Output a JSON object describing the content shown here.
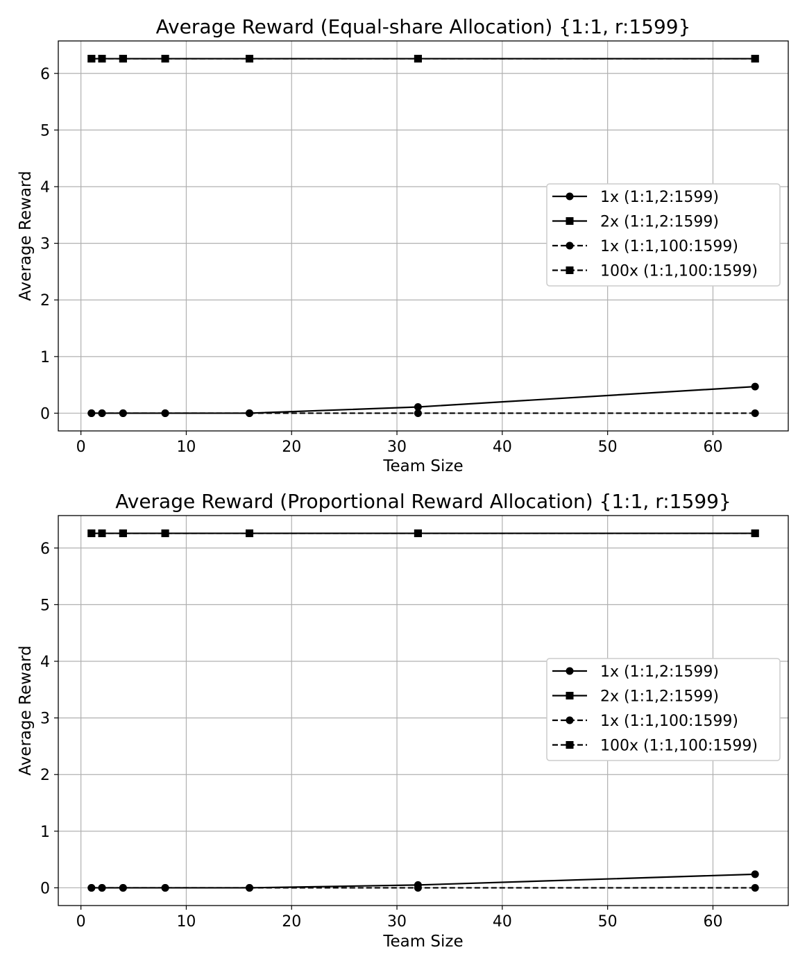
{
  "chart_data": [
    {
      "type": "line",
      "title": "Average Reward (Equal-share Allocation) {1:1, r:1599}",
      "xlabel": "Team Size",
      "ylabel": "Average Reward",
      "xlim": [
        -2.15,
        67.15
      ],
      "ylim": [
        -0.313,
        6.573
      ],
      "xticks": [
        0,
        10,
        20,
        30,
        40,
        50,
        60
      ],
      "yticks": [
        0,
        1,
        2,
        3,
        4,
        5,
        6
      ],
      "grid": true,
      "legend_position": "center-right",
      "x": [
        1,
        2,
        4,
        8,
        16,
        32,
        64
      ],
      "series": [
        {
          "name": "1x (1:1,2:1599)",
          "linestyle": "solid",
          "marker": "circle",
          "values": [
            0,
            0,
            0,
            0,
            0,
            0.11,
            0.47
          ]
        },
        {
          "name": "2x (1:1,2:1599)",
          "linestyle": "solid",
          "marker": "square",
          "values": [
            6.26,
            6.26,
            6.26,
            6.26,
            6.26,
            6.26,
            6.26
          ]
        },
        {
          "name": "1x (1:1,100:1599)",
          "linestyle": "dashed",
          "marker": "circle",
          "values": [
            0,
            0,
            0,
            0,
            0,
            0,
            0
          ]
        },
        {
          "name": "100x (1:1,100:1599)",
          "linestyle": "dashed",
          "marker": "square",
          "values": [
            6.26,
            6.26,
            6.26,
            6.26,
            6.26,
            6.26,
            6.26
          ]
        }
      ]
    },
    {
      "type": "line",
      "title": "Average Reward (Proportional Reward Allocation) {1:1, r:1599}",
      "xlabel": "Team Size",
      "ylabel": "Average Reward",
      "xlim": [
        -2.15,
        67.15
      ],
      "ylim": [
        -0.313,
        6.573
      ],
      "xticks": [
        0,
        10,
        20,
        30,
        40,
        50,
        60
      ],
      "yticks": [
        0,
        1,
        2,
        3,
        4,
        5,
        6
      ],
      "grid": true,
      "legend_position": "center-right",
      "x": [
        1,
        2,
        4,
        8,
        16,
        32,
        64
      ],
      "series": [
        {
          "name": "1x (1:1,2:1599)",
          "linestyle": "solid",
          "marker": "circle",
          "values": [
            0,
            0,
            0,
            0,
            0,
            0.05,
            0.24
          ]
        },
        {
          "name": "2x (1:1,2:1599)",
          "linestyle": "solid",
          "marker": "square",
          "values": [
            6.26,
            6.26,
            6.26,
            6.26,
            6.26,
            6.26,
            6.26
          ]
        },
        {
          "name": "1x (1:1,100:1599)",
          "linestyle": "dashed",
          "marker": "circle",
          "values": [
            0,
            0,
            0,
            0,
            0,
            0,
            0
          ]
        },
        {
          "name": "100x (1:1,100:1599)",
          "linestyle": "dashed",
          "marker": "square",
          "values": [
            6.26,
            6.26,
            6.26,
            6.26,
            6.26,
            6.26,
            6.26
          ]
        }
      ]
    }
  ]
}
